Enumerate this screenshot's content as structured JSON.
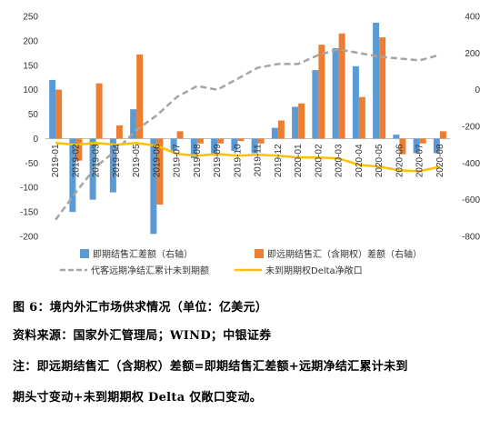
{
  "chart_data": {
    "type": "bar",
    "categories": [
      "2019-01",
      "2019-02",
      "2019-03",
      "2019-04",
      "2019-05",
      "2019-06",
      "2019-07",
      "2019-08",
      "2019-09",
      "2019-10",
      "2019-11",
      "2019-12",
      "2020-01",
      "2020-02",
      "2020-03",
      "2020-04",
      "2020-05",
      "2020-06",
      "2020-07",
      "2020-08"
    ],
    "left_axis": {
      "ylim": [
        -200,
        250
      ],
      "ticks": [
        -200,
        -150,
        -100,
        -50,
        0,
        50,
        100,
        150,
        200,
        250
      ]
    },
    "right_axis": {
      "ylim": [
        -800,
        400
      ],
      "ticks": [
        -800,
        -600,
        -400,
        -200,
        0,
        200,
        400
      ]
    },
    "series": [
      {
        "name": "即期结售汇差额（右轴）",
        "kind": "bar",
        "axis": "left",
        "color": "#5b9bd5",
        "values": [
          120,
          -150,
          -125,
          -110,
          60,
          -195,
          -25,
          -40,
          -35,
          -25,
          -30,
          22,
          65,
          140,
          185,
          148,
          237,
          8,
          -30,
          -30
        ]
      },
      {
        "name": "即远期结售汇（含期权）差额（右轴）",
        "kind": "bar",
        "axis": "left",
        "color": "#ed7d31",
        "values": [
          100,
          -45,
          113,
          27,
          172,
          -135,
          15,
          -10,
          -10,
          -5,
          -10,
          37,
          72,
          192,
          215,
          85,
          207,
          -32,
          -10,
          15
        ]
      },
      {
        "name": "代客远期净结汇累计未到期额",
        "kind": "line",
        "axis": "right",
        "color": "#a5a5a5",
        "dash": true,
        "values": [
          -710,
          -560,
          -420,
          -330,
          -220,
          -140,
          -40,
          20,
          0,
          60,
          120,
          140,
          140,
          190,
          220,
          200,
          180,
          170,
          160,
          190
        ]
      },
      {
        "name": "未到期期权Delta净敞口",
        "kind": "line",
        "axis": "right",
        "color": "#ffc000",
        "dash": false,
        "values": [
          -290,
          -300,
          -290,
          -300,
          -290,
          -305,
          -350,
          -360,
          -350,
          -360,
          -355,
          -360,
          -370,
          -370,
          -375,
          -410,
          -420,
          -440,
          -445,
          -420
        ]
      }
    ]
  },
  "caption": {
    "figure": "图 6：境内外汇市场供求情况（单位：亿美元）",
    "source": "资料来源：国家外汇管理局；WIND；中银证券",
    "note_line1": "注：即远期结售汇（含期权）差额=即期结售汇差额+远期净结汇累计未到",
    "note_line2": "期头寸变动+未到期期权 Delta 仅敞口变动。"
  }
}
